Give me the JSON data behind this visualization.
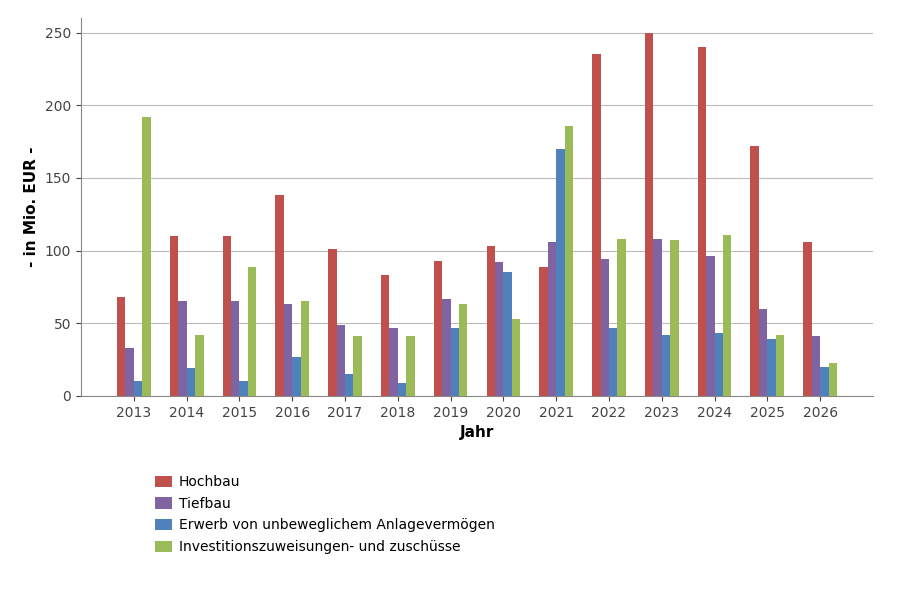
{
  "years": [
    2013,
    2014,
    2015,
    2016,
    2017,
    2018,
    2019,
    2020,
    2021,
    2022,
    2023,
    2024,
    2025,
    2026
  ],
  "hochbau": [
    68,
    110,
    110,
    138,
    101,
    83,
    93,
    103,
    89,
    235,
    250,
    240,
    172,
    106
  ],
  "tiefbau": [
    33,
    65,
    65,
    63,
    49,
    47,
    67,
    92,
    106,
    94,
    108,
    96,
    60,
    41
  ],
  "erwerb": [
    10,
    19,
    10,
    27,
    15,
    9,
    47,
    85,
    170,
    47,
    42,
    43,
    39,
    20
  ],
  "investitionen": [
    192,
    42,
    89,
    65,
    41,
    41,
    63,
    53,
    186,
    108,
    107,
    111,
    42,
    23
  ],
  "colors": {
    "hochbau": "#C0504D",
    "tiefbau": "#8064A2",
    "erwerb": "#4F81BD",
    "investitionen": "#9BBB59"
  },
  "legend_labels": [
    "Hochbau",
    "Tiefbau",
    "Erwerb von unbeweglichem Anlagevermögen",
    "Investitionszuweisungen- und zuschlüsse"
  ],
  "legend_labels_display": [
    "Hochbau",
    "Tiefbau",
    "Erwerb von unbeweglichem Anlagevermögen",
    "Investitionszuweisungen- und zuschüsse"
  ],
  "xlabel": "Jahr",
  "ylabel": "- in Mio. EUR -",
  "ylim": [
    0,
    260
  ],
  "yticks": [
    0,
    50,
    100,
    150,
    200,
    250
  ],
  "background_color": "#FFFFFF",
  "grid_color": "#BBBBBB",
  "bar_width": 0.16,
  "title_fontsize": 11,
  "axis_fontsize": 11,
  "tick_fontsize": 10,
  "legend_fontsize": 10
}
